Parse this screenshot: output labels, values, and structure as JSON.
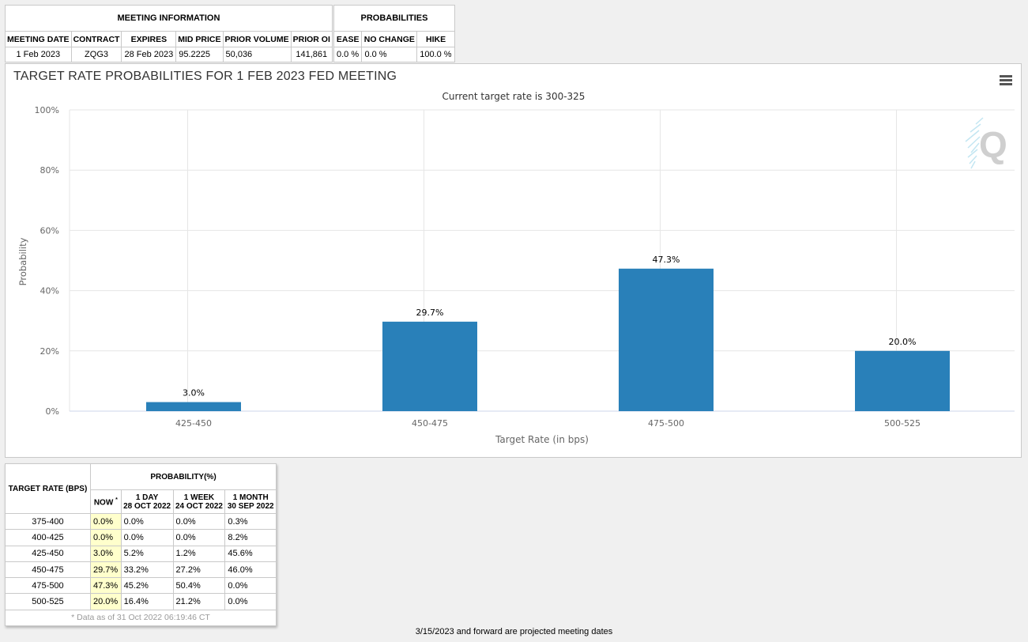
{
  "meeting_info": {
    "caption": "MEETING INFORMATION",
    "headers": [
      "MEETING DATE",
      "CONTRACT",
      "EXPIRES",
      "MID PRICE",
      "PRIOR VOLUME",
      "PRIOR OI"
    ],
    "row": [
      "1 Feb 2023",
      "ZQG3",
      "28 Feb 2023",
      "95.2225",
      "50,036",
      "141,861"
    ]
  },
  "probabilities": {
    "caption": "PROBABILITIES",
    "headers": [
      "EASE",
      "NO CHANGE",
      "HIKE"
    ],
    "row": [
      "0.0 %",
      "0.0 %",
      "100.0 %"
    ]
  },
  "chart_data": {
    "type": "bar",
    "title": "TARGET RATE PROBABILITIES FOR 1 FEB 2023 FED MEETING",
    "subtitle": "Current target rate is 300-325",
    "xlabel": "Target Rate (in bps)",
    "ylabel": "Probability",
    "categories": [
      "425-450",
      "450-475",
      "475-500",
      "500-525"
    ],
    "values": [
      3.0,
      29.7,
      47.3,
      20.0
    ],
    "data_labels": [
      "3.0%",
      "29.7%",
      "47.3%",
      "20.0%"
    ],
    "ylim": [
      0,
      100
    ],
    "yticks": [
      0,
      20,
      40,
      60,
      80,
      100
    ],
    "ytick_labels": [
      "0%",
      "20%",
      "40%",
      "60%",
      "80%",
      "100%"
    ],
    "grid": true,
    "bar_color": "#2980b9"
  },
  "rates_table": {
    "col_target": "TARGET RATE (BPS)",
    "col_prob": "PROBABILITY(%)",
    "now_label": "NOW",
    "now_mark": "*",
    "periods": [
      {
        "line1": "1 DAY",
        "line2": "28 OCT 2022"
      },
      {
        "line1": "1 WEEK",
        "line2": "24 OCT 2022"
      },
      {
        "line1": "1 MONTH",
        "line2": "30 SEP 2022"
      }
    ],
    "rows": [
      {
        "rate": "375-400",
        "now": "0.0%",
        "d1": "0.0%",
        "w1": "0.0%",
        "m1": "0.3%"
      },
      {
        "rate": "400-425",
        "now": "0.0%",
        "d1": "0.0%",
        "w1": "0.0%",
        "m1": "8.2%"
      },
      {
        "rate": "425-450",
        "now": "3.0%",
        "d1": "5.2%",
        "w1": "1.2%",
        "m1": "45.6%"
      },
      {
        "rate": "450-475",
        "now": "29.7%",
        "d1": "33.2%",
        "w1": "27.2%",
        "m1": "46.0%"
      },
      {
        "rate": "475-500",
        "now": "47.3%",
        "d1": "45.2%",
        "w1": "50.4%",
        "m1": "0.0%"
      },
      {
        "rate": "500-525",
        "now": "20.0%",
        "d1": "16.4%",
        "w1": "21.2%",
        "m1": "0.0%"
      }
    ],
    "footnote": "* Data as of 31 Oct 2022 06:19:46 CT"
  },
  "footer_note": "3/15/2023 and forward are projected meeting dates",
  "icons": {
    "menu": "hamburger-menu-icon",
    "watermark": "q-logo-watermark"
  }
}
